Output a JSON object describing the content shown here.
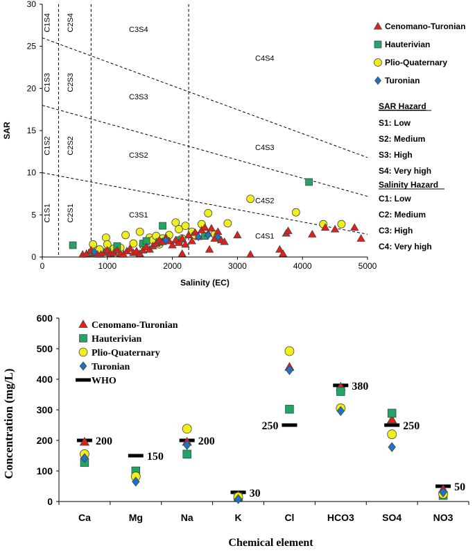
{
  "chart_data": [
    {
      "type": "scatter",
      "xlabel": "Salinity (EC)",
      "ylabel": "SAR",
      "xlim": [
        0,
        5000
      ],
      "ylim": [
        0,
        30
      ],
      "xticks": [
        "0",
        "1000",
        "2000",
        "3000",
        "4000",
        "5000"
      ],
      "yticks": [
        "0",
        "5",
        "10",
        "15",
        "20",
        "25",
        "30"
      ],
      "grid": false,
      "legend_position": "right",
      "zone_labels": [
        {
          "text": "C1S4",
          "x": 110,
          "y": 27.8,
          "vertical": true
        },
        {
          "text": "C2S4",
          "x": 470,
          "y": 27.8,
          "vertical": true
        },
        {
          "text": "C1S3",
          "x": 110,
          "y": 20.7,
          "vertical": true
        },
        {
          "text": "C2S3",
          "x": 470,
          "y": 20.7,
          "vertical": true
        },
        {
          "text": "C1S2",
          "x": 110,
          "y": 13.2,
          "vertical": true
        },
        {
          "text": "C2S2",
          "x": 470,
          "y": 13.2,
          "vertical": true
        },
        {
          "text": "C1S1",
          "x": 110,
          "y": 5.2,
          "vertical": true
        },
        {
          "text": "C2S1",
          "x": 470,
          "y": 5.2,
          "vertical": true
        },
        {
          "text": "C3S4",
          "x": 1480,
          "y": 26.7,
          "vertical": false
        },
        {
          "text": "C3S3",
          "x": 1480,
          "y": 18.7,
          "vertical": false
        },
        {
          "text": "C3S2",
          "x": 1480,
          "y": 11.8,
          "vertical": false
        },
        {
          "text": "C3S1",
          "x": 1480,
          "y": 4.7,
          "vertical": false
        },
        {
          "text": "C4S4",
          "x": 3420,
          "y": 23.3,
          "vertical": false
        },
        {
          "text": "C4S3",
          "x": 3420,
          "y": 12.7,
          "vertical": false
        },
        {
          "text": "C4S2",
          "x": 3420,
          "y": 6.4,
          "vertical": false
        },
        {
          "text": "C4S1",
          "x": 3420,
          "y": 2.2,
          "vertical": false
        }
      ],
      "dividers": {
        "vertical_x": [
          250,
          750,
          2250
        ],
        "lines": [
          [
            [
              0,
              26
            ],
            [
              5000,
              11.8
            ]
          ],
          [
            [
              0,
              18
            ],
            [
              5000,
              7.2
            ]
          ],
          [
            [
              0,
              10
            ],
            [
              5000,
              2.7
            ]
          ]
        ]
      },
      "series": [
        {
          "name": "Cenomano-Turonian",
          "marker": "triangle",
          "color": "#e0201b",
          "points": [
            [
              620,
              0.3
            ],
            [
              680,
              0.4
            ],
            [
              750,
              0.8
            ],
            [
              800,
              0.5
            ],
            [
              850,
              0.3
            ],
            [
              900,
              0.3
            ],
            [
              950,
              0.5
            ],
            [
              1000,
              0.8
            ],
            [
              1050,
              0.4
            ],
            [
              1100,
              0.5
            ],
            [
              1150,
              0.8
            ],
            [
              1200,
              0.4
            ],
            [
              1250,
              0.3
            ],
            [
              1300,
              0.7
            ],
            [
              1350,
              1.0
            ],
            [
              1400,
              0.5
            ],
            [
              1450,
              0.7
            ],
            [
              1500,
              0.4
            ],
            [
              1550,
              0.8
            ],
            [
              1600,
              1.2
            ],
            [
              1650,
              0.9
            ],
            [
              1700,
              1.3
            ],
            [
              1750,
              1.6
            ],
            [
              1800,
              2.0
            ],
            [
              1850,
              1.8
            ],
            [
              1900,
              2.3
            ],
            [
              1950,
              1.9
            ],
            [
              2000,
              1.4
            ],
            [
              2050,
              2.0
            ],
            [
              2100,
              1.7
            ],
            [
              2150,
              2.2
            ],
            [
              2200,
              1.5
            ],
            [
              2250,
              2.6
            ],
            [
              2300,
              1.9
            ],
            [
              2350,
              2.9
            ],
            [
              2400,
              2.4
            ],
            [
              2450,
              3.2
            ],
            [
              2500,
              3.5
            ],
            [
              2550,
              2.8
            ],
            [
              2600,
              3.4
            ],
            [
              2650,
              2.2
            ],
            [
              2700,
              3.0
            ],
            [
              2750,
              2.0
            ],
            [
              2800,
              1.8
            ],
            [
              2570,
              0.9
            ],
            [
              2150,
              0.4
            ],
            [
              3000,
              2.6
            ],
            [
              3200,
              0.3
            ],
            [
              3650,
              0.9
            ],
            [
              3700,
              0.4
            ],
            [
              3750,
              2.8
            ],
            [
              3780,
              3.1
            ],
            [
              4150,
              2.7
            ],
            [
              4350,
              3.5
            ],
            [
              4500,
              3.3
            ],
            [
              4800,
              3.5
            ],
            [
              4900,
              2.2
            ]
          ]
        },
        {
          "name": "Hauterivian",
          "marker": "square",
          "color": "#22a464",
          "points": [
            [
              470,
              1.4
            ],
            [
              760,
              0.5
            ],
            [
              1000,
              0.6
            ],
            [
              1150,
              1.3
            ],
            [
              1550,
              1.6
            ],
            [
              1600,
              1.9
            ],
            [
              1800,
              1.8
            ],
            [
              1850,
              3.7
            ],
            [
              2100,
              2.0
            ],
            [
              2500,
              2.5
            ],
            [
              4100,
              8.9
            ]
          ]
        },
        {
          "name": "Plio-Quaternary",
          "marker": "circle",
          "color": "#f0ee1c",
          "points": [
            [
              780,
              1.5
            ],
            [
              880,
              0.9
            ],
            [
              980,
              2.3
            ],
            [
              1000,
              1.5
            ],
            [
              1100,
              1.0
            ],
            [
              1200,
              1.1
            ],
            [
              1280,
              2.6
            ],
            [
              1400,
              1.6
            ],
            [
              1500,
              3.0
            ],
            [
              1550,
              1.4
            ],
            [
              1600,
              1.8
            ],
            [
              1650,
              2.3
            ],
            [
              1700,
              2.0
            ],
            [
              1750,
              2.5
            ],
            [
              1800,
              1.5
            ],
            [
              1850,
              2.2
            ],
            [
              1950,
              2.6
            ],
            [
              2050,
              4.1
            ],
            [
              2100,
              3.3
            ],
            [
              2150,
              2.2
            ],
            [
              2200,
              3.7
            ],
            [
              2300,
              3.0
            ],
            [
              2350,
              2.6
            ],
            [
              2450,
              3.9
            ],
            [
              2550,
              5.2
            ],
            [
              2650,
              2.7
            ],
            [
              2850,
              4.0
            ],
            [
              3200,
              6.9
            ],
            [
              3900,
              5.3
            ],
            [
              4320,
              3.9
            ],
            [
              4600,
              3.9
            ]
          ]
        },
        {
          "name": "Turonian",
          "marker": "diamond",
          "color": "#1f72c4",
          "points": [
            [
              800,
              0.6
            ],
            [
              1900,
              2.0
            ],
            [
              2400,
              2.4
            ],
            [
              2550,
              2.6
            ],
            [
              2700,
              2.4
            ]
          ]
        }
      ],
      "hazard_legend": {
        "sar_title": "SAR Hazard",
        "sar_items": [
          "S1: Low",
          "S2: Medium",
          "S3: High",
          "S4: Very high"
        ],
        "salinity_title": "Salinity Hazard",
        "salinity_items": [
          "C1: Low",
          "C2: Medium",
          "C3: High",
          "C4: Very high"
        ]
      }
    },
    {
      "type": "scatter",
      "xlabel": "Chemical element",
      "ylabel": "Concentration (mg/L)",
      "categories": [
        "Ca",
        "Mg",
        "Na",
        "K",
        "Cl",
        "HCO3",
        "SO4",
        "NO3"
      ],
      "ylim": [
        0,
        600
      ],
      "yticks": [
        "0",
        "100",
        "200",
        "300",
        "400",
        "500",
        "600"
      ],
      "grid": false,
      "legend_position": "top-left",
      "series": [
        {
          "name": "Cenomano-Turonian",
          "marker": "triangle",
          "color": "#e0201b",
          "values": [
            195,
            95,
            195,
            20,
            440,
            375,
            268,
            40
          ]
        },
        {
          "name": "Hauterivian",
          "marker": "square",
          "color": "#22a464",
          "values": [
            128,
            100,
            155,
            15,
            302,
            360,
            289,
            20
          ]
        },
        {
          "name": "Plio-Quaternary",
          "marker": "circle",
          "color": "#f0ee1c",
          "values": [
            155,
            82,
            238,
            15,
            492,
            305,
            220,
            25
          ]
        },
        {
          "name": "Turonian",
          "marker": "diamond",
          "color": "#1f72c4",
          "values": [
            142,
            65,
            185,
            8,
            430,
            296,
            178,
            30
          ]
        },
        {
          "name": "WHO",
          "marker": "dash",
          "color": "#000000",
          "values": [
            200,
            150,
            200,
            30,
            250,
            380,
            250,
            50
          ]
        }
      ],
      "who_labels": [
        "200",
        "150",
        "200",
        "30",
        "250",
        "380",
        "250",
        "50"
      ],
      "who_label_side": [
        "right",
        "right",
        "right",
        "right",
        "left",
        "right",
        "right",
        "right"
      ]
    }
  ]
}
